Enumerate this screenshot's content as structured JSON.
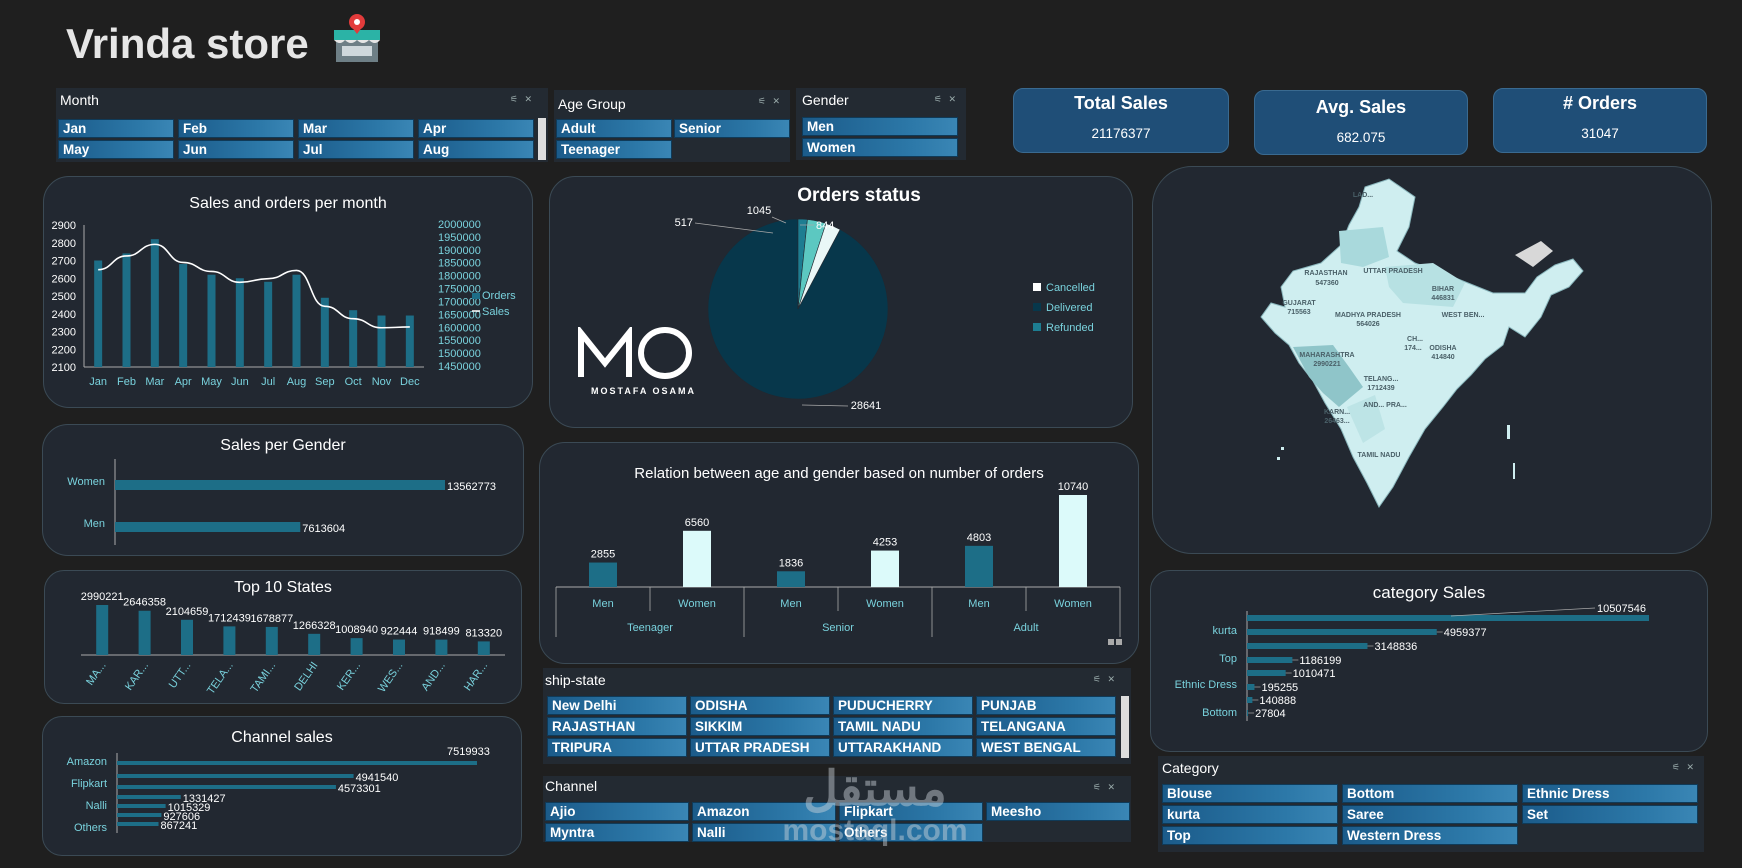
{
  "header": {
    "title": "Vrinda store",
    "icon": "store-icon"
  },
  "slicers": {
    "month": {
      "title": "Month",
      "items": [
        "Jan",
        "Feb",
        "Mar",
        "Apr",
        "May",
        "Jun",
        "Jul",
        "Aug"
      ]
    },
    "age_group": {
      "title": "Age Group",
      "items": [
        "Adult",
        "Senior",
        "Teenager"
      ]
    },
    "gender": {
      "title": "Gender",
      "items": [
        "Men",
        "Women"
      ]
    },
    "ship_state": {
      "title": "ship-state",
      "items": [
        "New Delhi",
        "ODISHA",
        "PUDUCHERRY",
        "PUNJAB",
        "RAJASTHAN",
        "SIKKIM",
        "TAMIL NADU",
        "TELANGANA",
        "TRIPURA",
        "UTTAR PRADESH",
        "UTTARAKHAND",
        "WEST BENGAL"
      ]
    },
    "channel": {
      "title": "Channel",
      "items": [
        "Ajio",
        "Amazon",
        "Flipkart",
        "Meesho",
        "Myntra",
        "Nalli",
        "Others"
      ]
    },
    "category": {
      "title": "Category",
      "items": [
        "Blouse",
        "Bottom",
        "Ethnic Dress",
        "kurta",
        "Saree",
        "Set",
        "Top",
        "Western Dress"
      ]
    }
  },
  "kpis": [
    {
      "title": "Total Sales",
      "value": "21176377"
    },
    {
      "title": "Avg. Sales",
      "value": "682.075"
    },
    {
      "title": "# Orders",
      "value": "31047"
    }
  ],
  "logo": {
    "initials": "MO",
    "name": "MOSTAFA OSAMA"
  },
  "watermark": {
    "arabic": "مستقل",
    "latin": "mostaql.com"
  },
  "map": {
    "title": "",
    "labels": [
      "LAD...",
      "RAJASTHAN",
      "547360",
      "UTTAR PRADESH",
      "BIHAR",
      "446831",
      "GUJARAT",
      "715563",
      "MADHYA PRADESH",
      "564026",
      "WEST BEN...",
      "MAHARASHTRA",
      "2990221",
      "CH...",
      "174...",
      "ODISHA",
      "414840",
      "TELANG...",
      "1712439",
      "KARN...",
      "26463...",
      "AND... PRA...",
      "TAMIL NADU"
    ]
  },
  "chart_data": [
    {
      "id": "monthly",
      "type": "bar",
      "title": "Sales and orders per month",
      "categories": [
        "Jan",
        "Feb",
        "Mar",
        "Apr",
        "May",
        "Jun",
        "Jul",
        "Aug",
        "Sep",
        "Oct",
        "Nov",
        "Dec"
      ],
      "series": [
        {
          "name": "Orders",
          "axis": "left",
          "type": "bar",
          "values": [
            2700,
            2740,
            2820,
            2680,
            2620,
            2600,
            2580,
            2620,
            2490,
            2420,
            2390,
            2390
          ]
        },
        {
          "name": "Sales",
          "axis": "right",
          "type": "line",
          "values": [
            1827000,
            1880000,
            1925000,
            1855000,
            1820000,
            1778000,
            1792000,
            1824000,
            1685000,
            1637000,
            1602000,
            1605000
          ]
        }
      ],
      "y_left": {
        "min": 2100,
        "max": 2900,
        "ticks": [
          2900,
          2800,
          2700,
          2600,
          2500,
          2400,
          2300,
          2200,
          2100
        ]
      },
      "y_right": {
        "min": 1450000,
        "max": 2000000,
        "ticks": [
          2000000,
          1950000,
          1900000,
          1850000,
          1800000,
          1750000,
          1700000,
          1650000,
          1600000,
          1550000,
          1500000,
          1450000
        ]
      },
      "legend": [
        "Orders",
        "Sales"
      ]
    },
    {
      "id": "orders_status",
      "type": "pie",
      "title": "Orders status",
      "slices": [
        {
          "label": "Delivered",
          "value": 28641
        },
        {
          "label": "",
          "value": 517
        },
        {
          "label": "Refunded",
          "value": 1045
        },
        {
          "label": "Cancelled",
          "value": 844
        }
      ],
      "legend": [
        "Cancelled",
        "Delivered",
        "Refunded"
      ],
      "value_labels": [
        "517",
        "1045",
        "844",
        "28641"
      ]
    },
    {
      "id": "gender_sales",
      "type": "bar",
      "orientation": "horizontal",
      "title": "Sales per Gender",
      "categories": [
        "Women",
        "Men"
      ],
      "values": [
        13562773,
        7613604
      ],
      "value_labels": [
        "13562773",
        "7613604"
      ]
    },
    {
      "id": "age_gender",
      "type": "bar",
      "title": "Relation between age and gender based on number of orders",
      "groups": [
        "Teenager",
        "Senior",
        "Adult"
      ],
      "categories": [
        "Men",
        "Women",
        "Men",
        "Women",
        "Men",
        "Women"
      ],
      "values": [
        2855,
        6560,
        1836,
        4253,
        4803,
        10740
      ],
      "value_labels": [
        "2855",
        "6560",
        "1836",
        "4253",
        "4803",
        "10740"
      ]
    },
    {
      "id": "top_states",
      "type": "bar",
      "title": "Top 10 States",
      "categories": [
        "MA...",
        "KAR...",
        "UTT...",
        "TELA...",
        "TAMI...",
        "DELHI",
        "KER...",
        "WES...",
        "AND...",
        "HAR..."
      ],
      "values": [
        2990221,
        2646358,
        2104659,
        1712439,
        1678877,
        1266328,
        1008940,
        922444,
        918499,
        813320
      ],
      "value_labels": [
        "2990221",
        "2646358",
        "2104659",
        "1712439",
        "1678877",
        "1266328",
        "1008940",
        "922444",
        "918499",
        "813320"
      ]
    },
    {
      "id": "channel_sales",
      "type": "bar",
      "orientation": "horizontal",
      "title": "Channel sales",
      "category_labels": [
        "Amazon",
        "Flipkart",
        "Nalli",
        "Others"
      ],
      "values": [
        7519933,
        4941540,
        4573301,
        1331427,
        1015329,
        927606,
        867241
      ],
      "value_labels": [
        "7519933",
        "4941540",
        "4573301",
        "1331427",
        "1015329",
        "927606",
        "867241"
      ]
    },
    {
      "id": "category_sales",
      "type": "bar",
      "orientation": "horizontal",
      "title": "category Sales",
      "category_labels": [
        "kurta",
        "Top",
        "Ethnic Dress",
        "Bottom"
      ],
      "values": [
        10507546,
        4959377,
        3148836,
        1186199,
        1010471,
        195255,
        140888,
        27804
      ],
      "value_labels": [
        "10507546",
        "4959377",
        "3148836",
        "1186199",
        "1010471",
        "195255",
        "140888",
        "27804"
      ]
    }
  ]
}
